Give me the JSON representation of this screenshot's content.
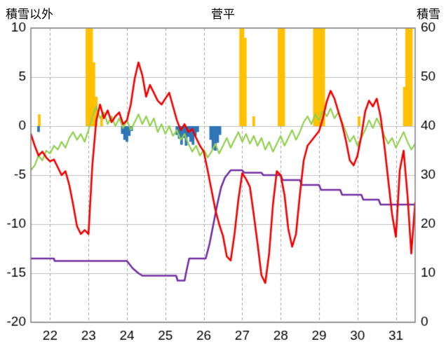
{
  "header": {
    "left_axis_title": "積雪以外",
    "title": "菅平",
    "right_axis_title": "積雪"
  },
  "chart_data": {
    "type": "line",
    "title": "菅平",
    "left_axis": {
      "label": "積雪以外",
      "min": -20,
      "max": 10,
      "ticks": [
        10,
        5,
        0,
        -5,
        -10,
        -15,
        -20
      ]
    },
    "right_axis": {
      "label": "積雪",
      "min": 0,
      "max": 60,
      "ticks": [
        60,
        50,
        40,
        30,
        20,
        10,
        0
      ]
    },
    "x_axis": {
      "min": 21.5,
      "max": 31.5,
      "ticks": [
        22,
        23,
        24,
        25,
        26,
        27,
        28,
        29,
        30,
        31
      ]
    },
    "grid": {
      "h_color": "#bfbfbf",
      "v_color": "#a6a6a6",
      "border_color": "#7f7f7f"
    },
    "series": [
      {
        "id": "yellow_bars",
        "type": "bar",
        "axis": "left",
        "color": "#ffc000",
        "bar_width": 0.07,
        "points": [
          [
            21.72,
            1.2
          ],
          [
            22.96,
            10
          ],
          [
            23.02,
            10
          ],
          [
            23.08,
            10
          ],
          [
            23.14,
            6.5
          ],
          [
            23.2,
            3
          ],
          [
            23.34,
            1
          ],
          [
            26.96,
            10
          ],
          [
            27.02,
            10
          ],
          [
            27.08,
            9
          ],
          [
            27.3,
            1
          ],
          [
            27.96,
            10
          ],
          [
            28.02,
            10
          ],
          [
            28.08,
            10
          ],
          [
            28.88,
            10
          ],
          [
            28.94,
            10
          ],
          [
            29.0,
            10
          ],
          [
            29.06,
            10
          ],
          [
            29.12,
            10
          ],
          [
            30.04,
            1
          ],
          [
            31.22,
            4
          ],
          [
            31.28,
            10
          ],
          [
            31.34,
            10
          ],
          [
            31.4,
            10
          ]
        ]
      },
      {
        "id": "blue_bars",
        "type": "bar",
        "axis": "left",
        "color": "#2e75b6",
        "bar_width": 0.07,
        "points": [
          [
            21.7,
            -0.6
          ],
          [
            23.88,
            -0.8
          ],
          [
            23.94,
            -1.4
          ],
          [
            24.0,
            -1.6
          ],
          [
            24.06,
            -1.0
          ],
          [
            24.12,
            -0.5
          ],
          [
            25.3,
            -0.9
          ],
          [
            25.36,
            -1.3
          ],
          [
            25.42,
            -1.9
          ],
          [
            25.48,
            -1.2
          ],
          [
            25.54,
            -2.0
          ],
          [
            25.6,
            -1.1
          ],
          [
            25.66,
            -1.6
          ],
          [
            25.72,
            -1.9
          ],
          [
            25.78,
            -1.0
          ],
          [
            25.84,
            -0.6
          ],
          [
            26.18,
            -1.4
          ],
          [
            26.24,
            -2.4
          ],
          [
            26.3,
            -2.5
          ],
          [
            26.36,
            -1.7
          ],
          [
            26.42,
            -0.9
          ]
        ]
      },
      {
        "id": "green_line",
        "type": "line",
        "axis": "left",
        "color": "#92d050",
        "width": 2.2,
        "t0": 21.5,
        "dt": 0.1,
        "values": [
          -4.5,
          -4.0,
          -3.0,
          -3.5,
          -2.5,
          -2.8,
          -2.0,
          -2.4,
          -1.6,
          -2.2,
          -1.2,
          -0.6,
          -1.4,
          -0.8,
          -1.6,
          -0.4,
          1.0,
          2.0,
          0.8,
          1.4,
          0.2,
          1.0,
          0.0,
          0.8,
          -0.2,
          0.6,
          -0.4,
          0.4,
          1.2,
          0.2,
          1.0,
          0.0,
          0.8,
          -0.6,
          0.2,
          -0.8,
          0.0,
          -1.0,
          -0.4,
          -1.4,
          -0.8,
          -1.8,
          -2.6,
          -2.0,
          -3.0,
          -2.4,
          -3.2,
          -2.6,
          -1.8,
          -2.8,
          -2.0,
          -1.2,
          -2.2,
          -1.4,
          -0.6,
          -1.6,
          -0.8,
          -1.8,
          -1.0,
          -2.0,
          -1.2,
          -2.4,
          -1.6,
          -2.6,
          -1.8,
          -1.0,
          -2.0,
          -1.2,
          -0.4,
          -1.4,
          -0.6,
          0.4,
          1.0,
          0.2,
          1.2,
          0.6,
          1.6,
          1.0,
          1.8,
          0.8,
          1.4,
          0.4,
          -0.6,
          -1.6,
          -1.0,
          -2.0,
          -1.2,
          -0.4,
          0.6,
          -0.2,
          0.8,
          0.0,
          -1.0,
          -1.8,
          -1.2,
          -2.2,
          -1.4,
          -0.6,
          -1.6,
          -2.4,
          -1.8
        ]
      },
      {
        "id": "snow_depth",
        "type": "line",
        "axis": "right",
        "color": "#7030a0",
        "width": 2.6,
        "points": [
          [
            21.5,
            13
          ],
          [
            22.1,
            13
          ],
          [
            22.12,
            12.5
          ],
          [
            24.0,
            12.5
          ],
          [
            24.05,
            12
          ],
          [
            24.15,
            11
          ],
          [
            24.3,
            10
          ],
          [
            24.4,
            9.5
          ],
          [
            25.28,
            9.5
          ],
          [
            25.32,
            8.5
          ],
          [
            25.5,
            8.5
          ],
          [
            25.55,
            10.5
          ],
          [
            25.62,
            13
          ],
          [
            26.05,
            13
          ],
          [
            26.15,
            16
          ],
          [
            26.25,
            20
          ],
          [
            26.35,
            24
          ],
          [
            26.45,
            27.5
          ],
          [
            26.55,
            29.5
          ],
          [
            26.7,
            31
          ],
          [
            27.0,
            31
          ],
          [
            27.05,
            30.5
          ],
          [
            27.5,
            30.5
          ],
          [
            27.55,
            30
          ],
          [
            28.0,
            30
          ],
          [
            28.05,
            29
          ],
          [
            28.5,
            29
          ],
          [
            28.55,
            28
          ],
          [
            29.0,
            28
          ],
          [
            29.05,
            27
          ],
          [
            29.55,
            27
          ],
          [
            29.6,
            26
          ],
          [
            30.1,
            26
          ],
          [
            30.15,
            25
          ],
          [
            30.55,
            25
          ],
          [
            30.6,
            24
          ],
          [
            31.5,
            24
          ]
        ]
      },
      {
        "id": "red_line",
        "type": "line",
        "axis": "left",
        "color": "#ee0000",
        "width": 2.6,
        "t0": 21.5,
        "dt": 0.1,
        "values": [
          -0.8,
          -2.0,
          -3.0,
          -2.6,
          -3.2,
          -3.6,
          -3.4,
          -4.2,
          -5.0,
          -4.6,
          -6.0,
          -8.0,
          -10.2,
          -11.0,
          -10.6,
          -11.0,
          -4.0,
          0.5,
          2.2,
          0.8,
          1.6,
          0.4,
          1.0,
          1.4,
          0.2,
          0.6,
          2.2,
          4.8,
          6.5,
          5.2,
          3.0,
          4.2,
          3.4,
          2.6,
          2.2,
          2.8,
          3.4,
          2.0,
          0.6,
          -0.4,
          0.2,
          -0.6,
          -0.3,
          -1.2,
          -2.0,
          -2.6,
          -4.5,
          -6.5,
          -8.5,
          -10.0,
          -11.2,
          -13.3,
          -13.7,
          -11.0,
          -7.5,
          -4.8,
          -5.4,
          -6.2,
          -9.0,
          -12.0,
          -15.2,
          -16.0,
          -13.0,
          -8.0,
          -4.6,
          -5.0,
          -7.0,
          -10.5,
          -12.3,
          -11.0,
          -7.0,
          -3.5,
          -2.0,
          -1.5,
          -1.0,
          -0.5,
          0.8,
          2.5,
          3.6,
          2.8,
          1.5,
          0.2,
          -1.5,
          -3.5,
          -4.0,
          -3.0,
          -1.0,
          1.5,
          2.6,
          2.0,
          2.8,
          1.0,
          -2.0,
          -5.5,
          -9.0,
          -11.3,
          -4.5,
          -2.5,
          -7.0,
          -13.0,
          -7.8
        ]
      }
    ]
  }
}
